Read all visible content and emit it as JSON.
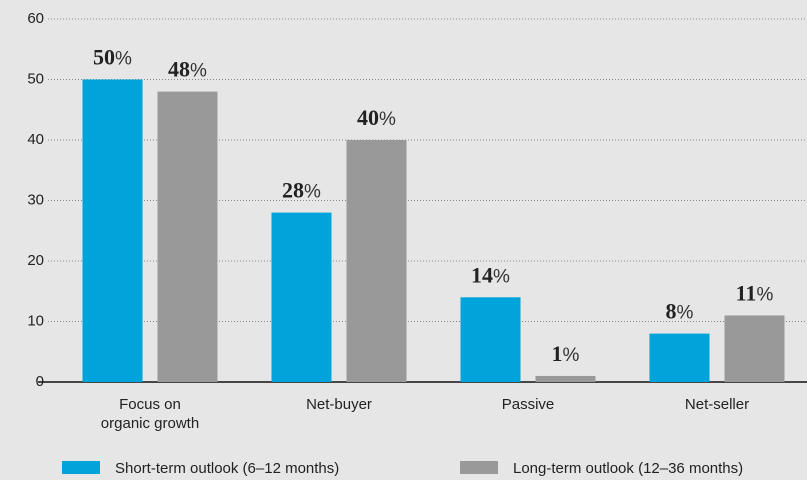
{
  "chart_data": {
    "type": "bar",
    "categories": [
      "Focus on\norganic growth",
      "Net-buyer",
      "Passive",
      "Net-seller"
    ],
    "series": [
      {
        "name": "Short-term outlook (6–12 months)",
        "color": "#00a3da",
        "values": [
          50,
          28,
          14,
          8
        ],
        "value_labels": [
          "50%",
          "28%",
          "14%",
          "8%"
        ]
      },
      {
        "name": "Long-term outlook (12–36 months)",
        "color": "#999999",
        "values": [
          48,
          40,
          1,
          11
        ],
        "value_labels": [
          "48%",
          "40%",
          "1%",
          "11%"
        ]
      }
    ],
    "ylim": [
      0,
      60
    ],
    "yticks": [
      0,
      10,
      20,
      30,
      40,
      50,
      60
    ],
    "grid": true,
    "legend": "bottom"
  }
}
